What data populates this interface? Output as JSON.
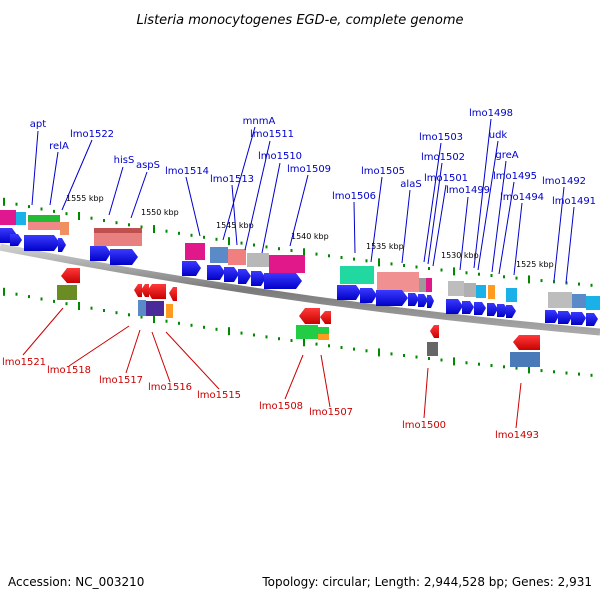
{
  "title": "Listeria monocytogenes EGD-e, complete genome",
  "footer": {
    "accession": "Accession: NC_003210",
    "topology": "Topology: circular; Length: 2,944,528 bp; Genes: 2,931"
  },
  "colors": {
    "forward_label": "#0000cc",
    "reverse_label": "#cc0000",
    "forward_arrow": "#0000ee",
    "reverse_arrow": "#ee0000",
    "backbone": "#8a8a8a",
    "tick": "#008800"
  },
  "kbp_labels": [
    "1555 kbp",
    "1550 kbp",
    "1545 kbp",
    "1540 kbp",
    "1535 kbp",
    "1530 kbp",
    "1525 kbp"
  ],
  "forward_genes": [
    "apt",
    "relA",
    "lmo1522",
    "hisS",
    "aspS",
    "lmo1514",
    "mnmA",
    "lmo1513",
    "lmo1511",
    "lmo1510",
    "lmo1509",
    "lmo1506",
    "lmo1505",
    "alaS",
    "lmo1503",
    "lmo1502",
    "lmo1501",
    "lmo1499",
    "lmo1498",
    "udk",
    "greA",
    "lmo1495",
    "lmo1494",
    "lmo1492",
    "lmo1491"
  ],
  "reverse_genes": [
    "lmo1521",
    "lmo1518",
    "lmo1517",
    "lmo1516",
    "lmo1515",
    "lmo1508",
    "lmo1507",
    "lmo1500",
    "lmo1493"
  ]
}
